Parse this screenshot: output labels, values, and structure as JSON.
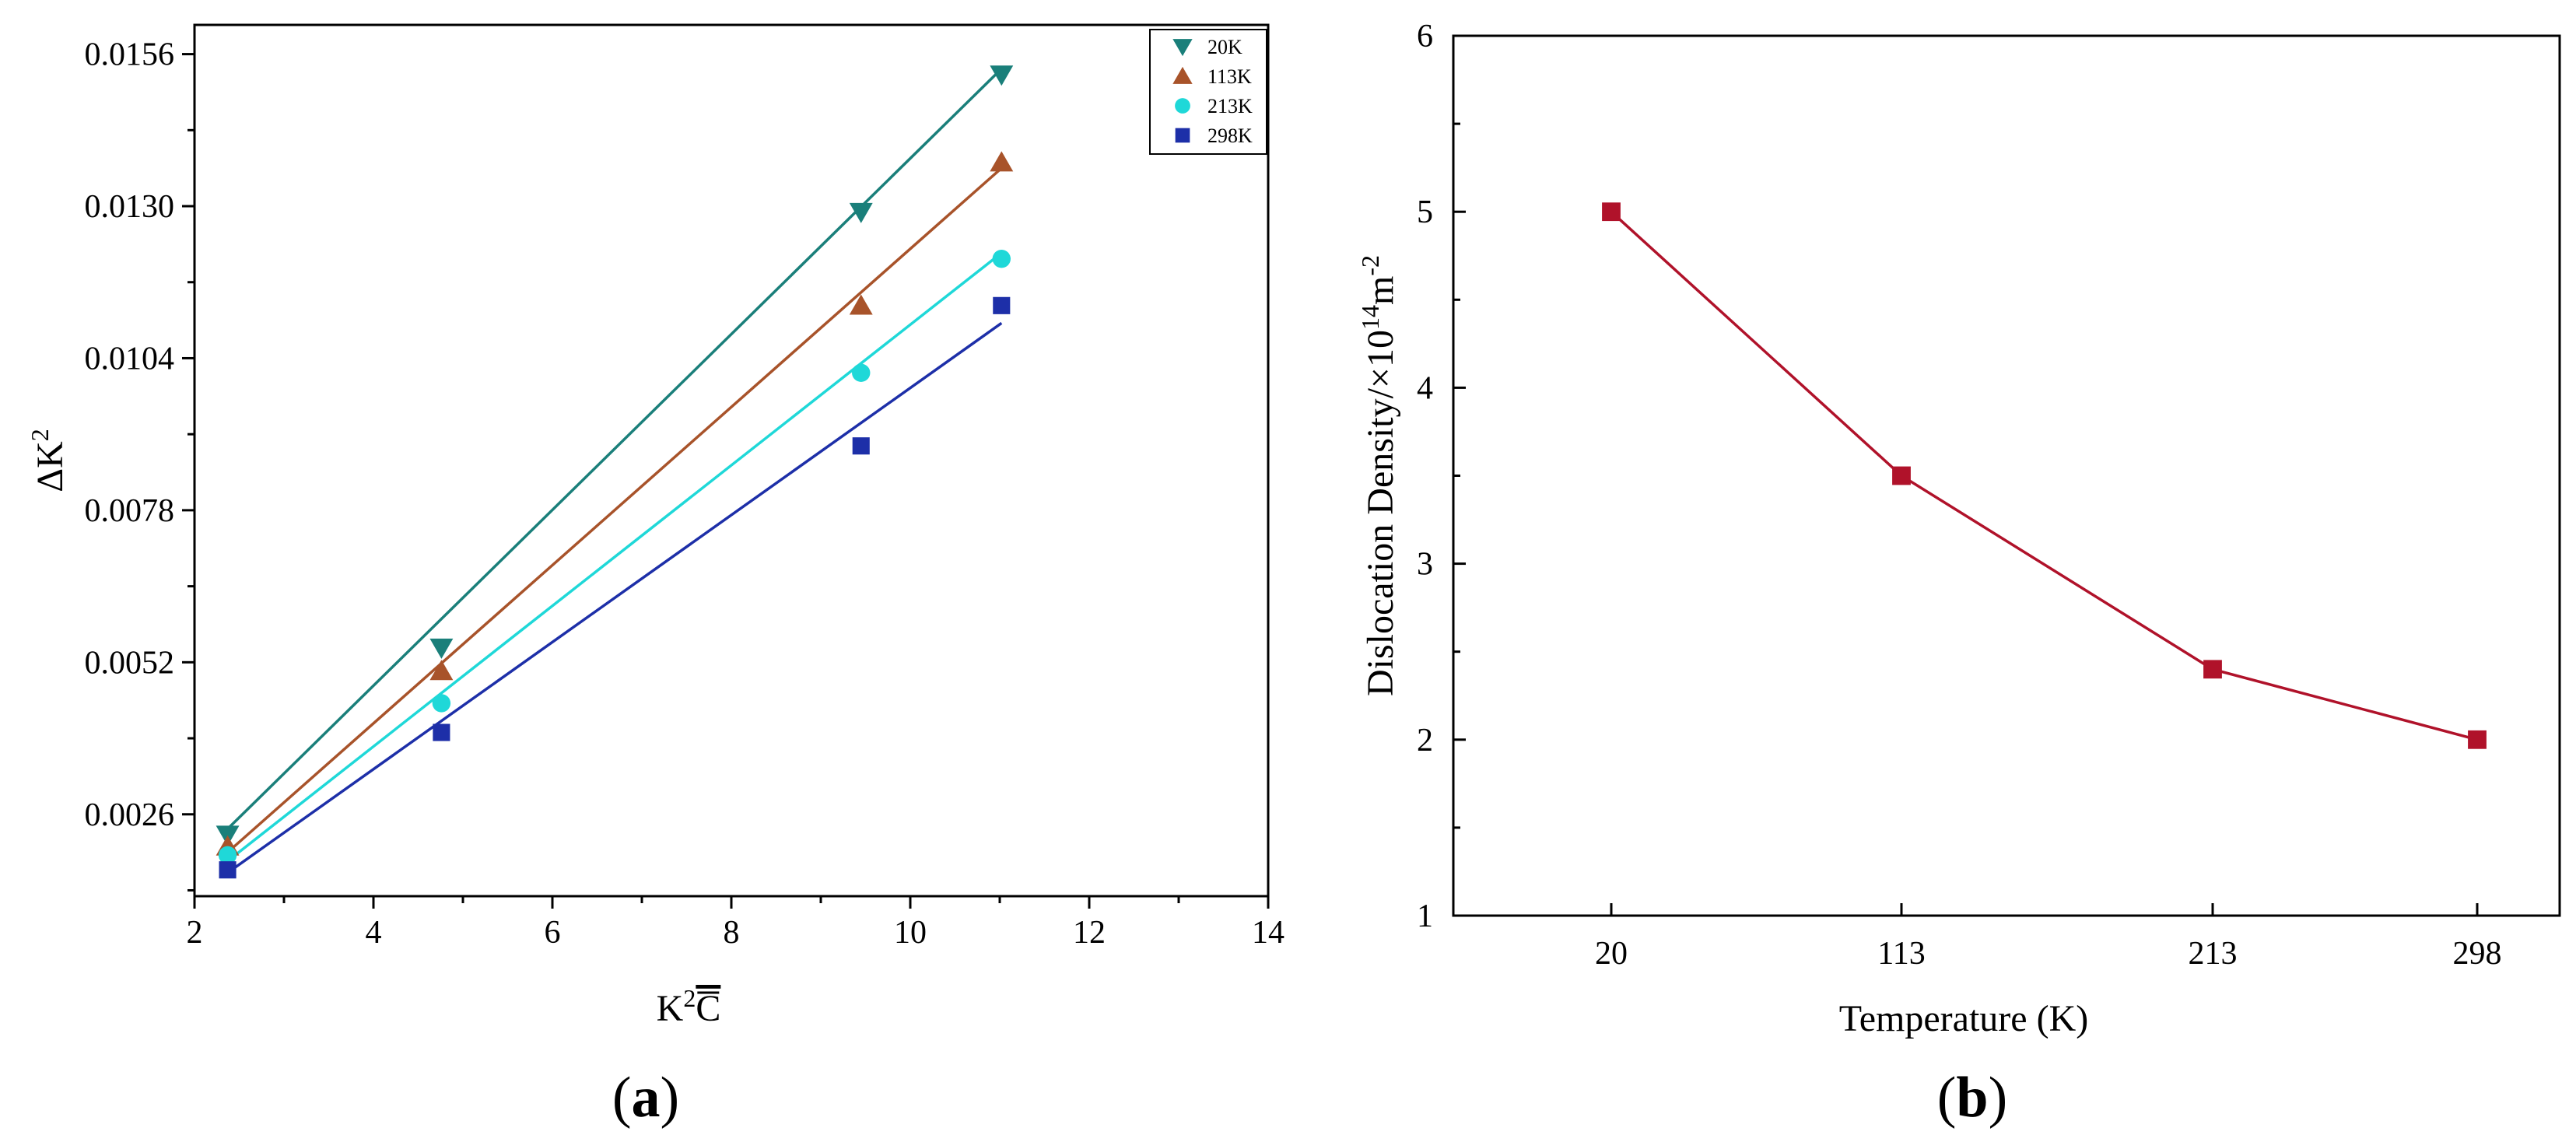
{
  "chart_data": [
    {
      "type": "scatter",
      "panel_label_open": "(",
      "panel_label_letter": "a",
      "panel_label_close": ")",
      "xlabel_main": "K",
      "xlabel_sup": "2",
      "xlabel_tail": "C",
      "ylabel_main": "ΔK",
      "ylabel_sup": "2",
      "xlim": [
        2,
        14
      ],
      "ylim": [
        0.0012,
        0.0161
      ],
      "x_ticks": [
        2,
        4,
        6,
        8,
        10,
        12,
        14
      ],
      "x_tick_labels": [
        "2",
        "4",
        "6",
        "8",
        "10",
        "12",
        "14"
      ],
      "y_ticks": [
        0.0026,
        0.0052,
        0.0078,
        0.0104,
        0.013,
        0.0156
      ],
      "y_tick_labels": [
        "0.0026",
        "0.0052",
        "0.0078",
        "0.0104",
        "0.0130",
        "0.0156"
      ],
      "legend_position": "top-right",
      "series": [
        {
          "name": "20K",
          "marker": "triangle-down",
          "color": "#1a7f7a",
          "x": [
            2.37,
            4.76,
            9.45,
            11.02
          ],
          "y": [
            0.00225,
            0.00545,
            0.0129,
            0.01525
          ],
          "fit": [
            [
              2.37,
              0.00235
            ],
            [
              11.02,
              0.01535
            ]
          ]
        },
        {
          "name": "113K",
          "marker": "triangle-up",
          "color": "#a8532a",
          "x": [
            2.37,
            4.76,
            9.45,
            11.02
          ],
          "y": [
            0.00205,
            0.00505,
            0.0113,
            0.01375
          ],
          "fit": [
            [
              2.37,
              0.00195
            ],
            [
              11.02,
              0.01365
            ]
          ]
        },
        {
          "name": "213K",
          "marker": "circle",
          "color": "#1fd8d8",
          "x": [
            2.37,
            4.76,
            9.45,
            11.02
          ],
          "y": [
            0.0019,
            0.0045,
            0.01015,
            0.0121
          ],
          "fit": [
            [
              2.37,
              0.0018
            ],
            [
              11.02,
              0.0122
            ]
          ]
        },
        {
          "name": "298K",
          "marker": "square",
          "color": "#1d2fa8",
          "x": [
            2.37,
            4.76,
            9.45,
            11.02
          ],
          "y": [
            0.00165,
            0.004,
            0.0089,
            0.0113
          ],
          "fit": [
            [
              2.37,
              0.0016
            ],
            [
              11.02,
              0.011
            ]
          ]
        }
      ]
    },
    {
      "type": "line",
      "panel_label_open": "(",
      "panel_label_letter": "b",
      "panel_label_close": ")",
      "xlabel": "Temperature (K)",
      "ylabel_main": "Dislocation Density/×10",
      "ylabel_sup1": "14",
      "ylabel_mid": "m",
      "ylabel_sup2": "-2",
      "categories": [
        "20",
        "113",
        "213",
        "298"
      ],
      "values": [
        5.0,
        3.5,
        2.4,
        2.0
      ],
      "ylim": [
        1,
        6
      ],
      "y_ticks": [
        1,
        2,
        3,
        4,
        5,
        6
      ],
      "y_tick_labels": [
        "1",
        "2",
        "3",
        "4",
        "5",
        "6"
      ],
      "color": "#b0122a",
      "marker": "square"
    }
  ]
}
